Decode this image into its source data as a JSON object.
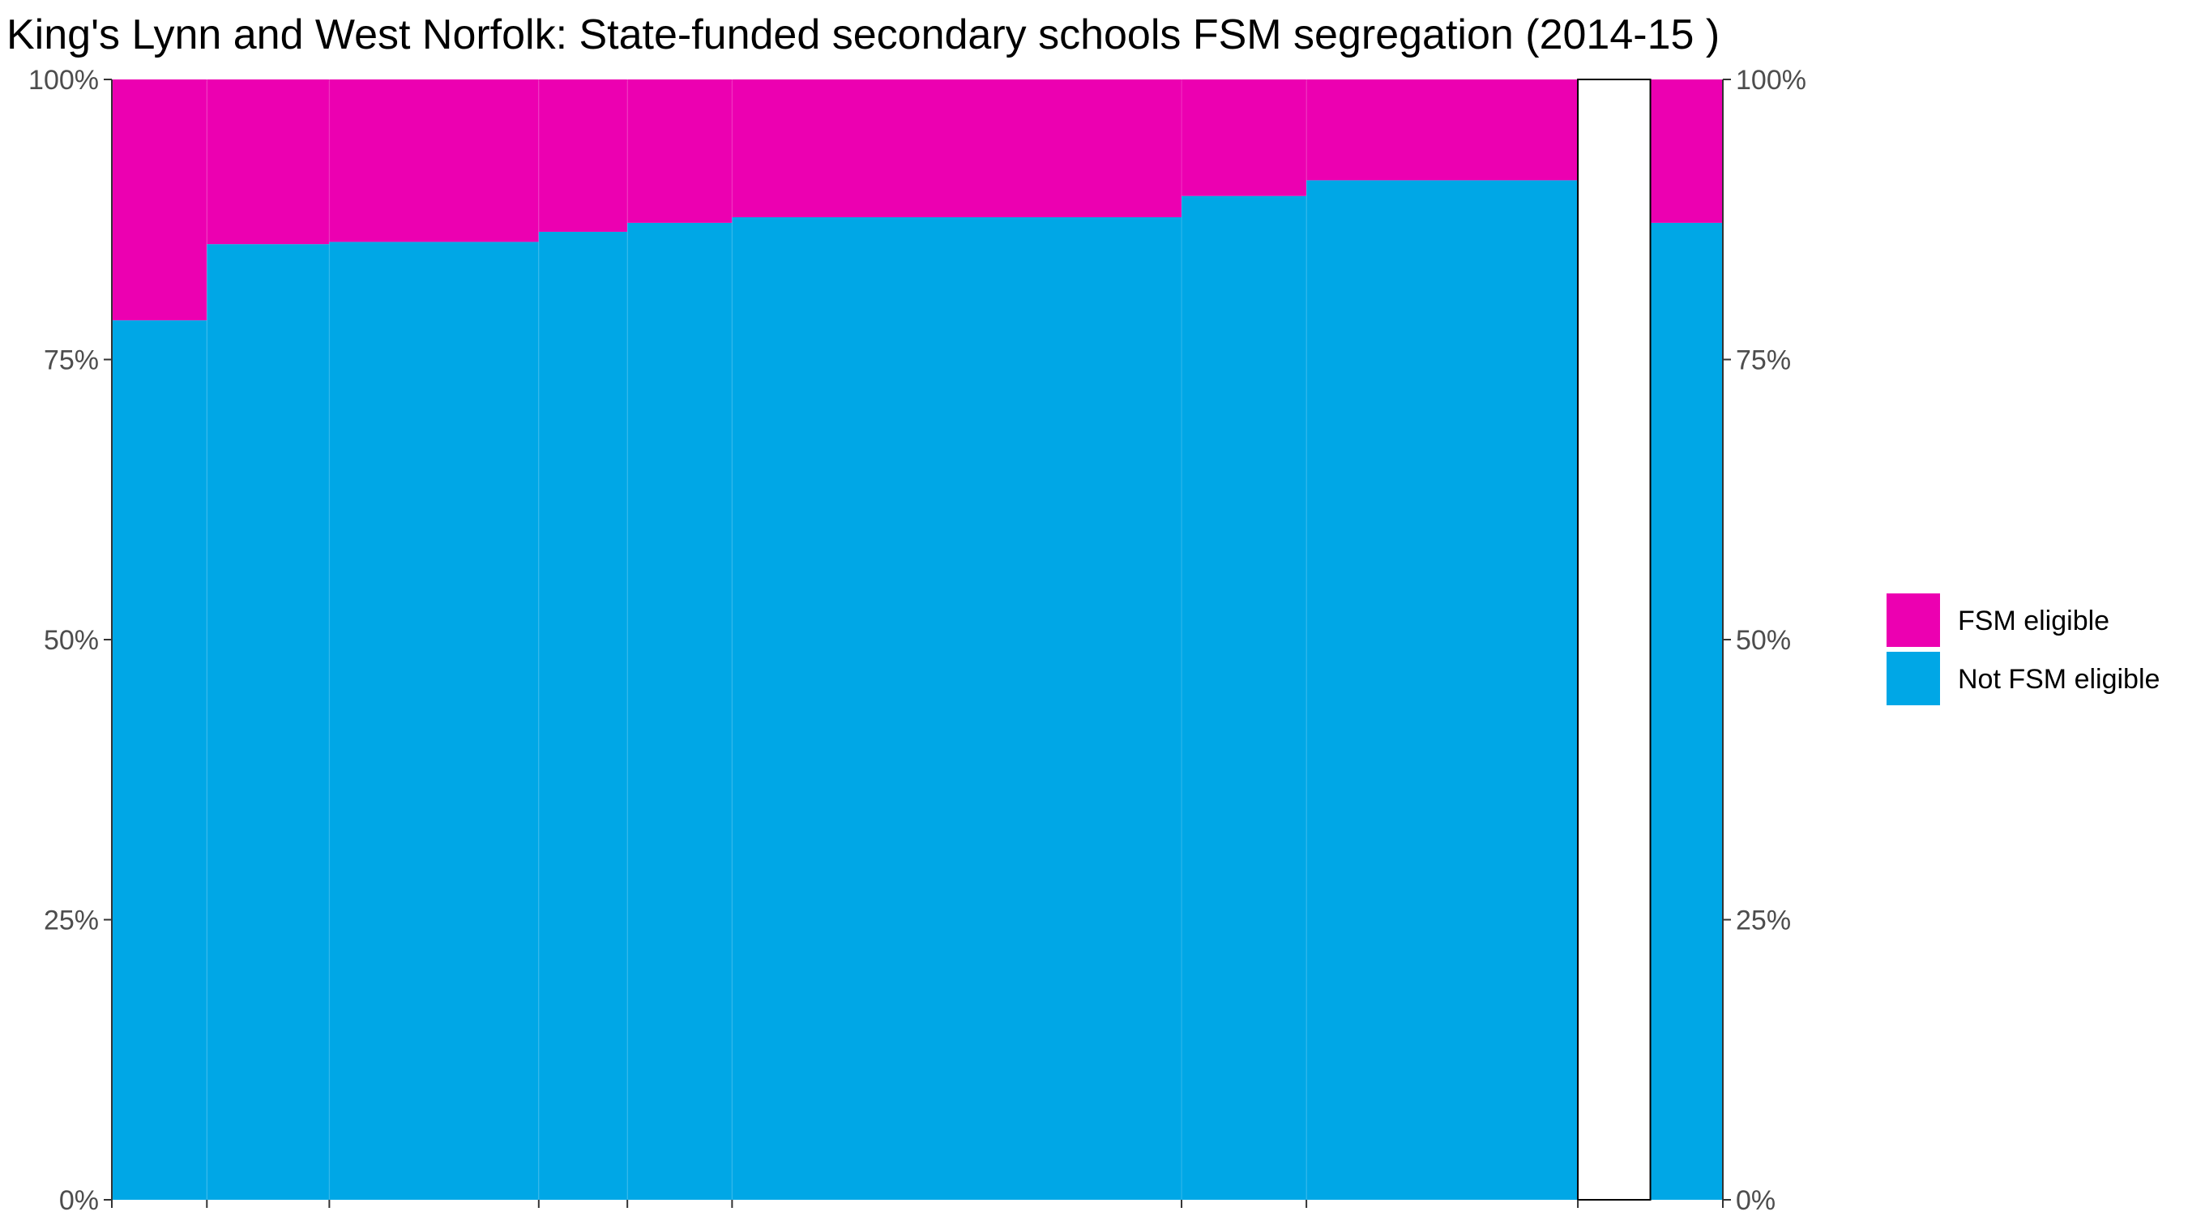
{
  "chart_data": {
    "type": "bar",
    "title": "King's Lynn and West Norfolk: State-funded secondary schools FSM segregation (2014-15 )",
    "xlabel": "",
    "ylabel": "",
    "ylim": [
      0,
      100
    ],
    "y_ticks": [
      "0%",
      "25%",
      "50%",
      "75%",
      "100%"
    ],
    "y_tick_values": [
      0,
      25,
      50,
      75,
      100
    ],
    "x_axis_extent": [
      0,
      2000
    ],
    "bars": [
      {
        "x_start": 0,
        "x_end": 118,
        "not_fsm": 78.5
      },
      {
        "x_start": 118,
        "x_end": 270,
        "not_fsm": 85.3
      },
      {
        "x_start": 270,
        "x_end": 530,
        "not_fsm": 85.5
      },
      {
        "x_start": 530,
        "x_end": 640,
        "not_fsm": 86.4
      },
      {
        "x_start": 640,
        "x_end": 770,
        "not_fsm": 87.2
      },
      {
        "x_start": 770,
        "x_end": 1328,
        "not_fsm": 87.7
      },
      {
        "x_start": 1328,
        "x_end": 1483,
        "not_fsm": 89.6
      },
      {
        "x_start": 1483,
        "x_end": 1820,
        "not_fsm": 91.0
      }
    ],
    "gap_bar": {
      "x_start": 1820,
      "x_end": 1910
    },
    "total_bar": {
      "x_start": 1910,
      "x_end": 2000,
      "not_fsm": 87.2
    },
    "series": [
      {
        "name": "FSM eligible",
        "color": "#EC00B1"
      },
      {
        "name": "Not FSM eligible",
        "color": "#00A7E6"
      }
    ],
    "legend_position": "right",
    "grid": false
  }
}
